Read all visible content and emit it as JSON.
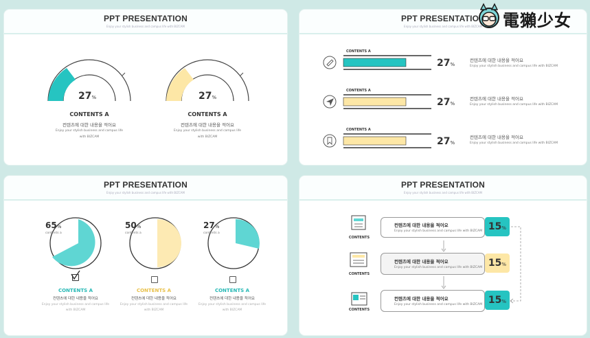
{
  "watermark": {
    "text": "電獺少女"
  },
  "colors": {
    "teal": "#26c4c1",
    "yellow": "#fde7a6",
    "light_teal": "#5fd6d3",
    "light_yellow": "#fdeab3"
  },
  "slides": [
    {
      "title": "PPT PRESENTATION",
      "subtitle": "Enjoy your stylish business and campus life with BIZCAM",
      "gauges": [
        {
          "value": "27",
          "unit": "%",
          "heading": "CONTENTS A",
          "korean": "컨텐츠에 대한 내용을 적어요",
          "english1": "Enjoy your stylish business and campus life",
          "english2": "with BIZCAM"
        },
        {
          "value": "27",
          "unit": "%",
          "heading": "CONTENTS A",
          "korean": "컨텐츠에 대한 내용을 적어요",
          "english1": "Enjoy your stylish business and campus life",
          "english2": "with BIZCAM"
        }
      ]
    },
    {
      "title": "PPT PRESENTATION",
      "subtitle": "Enjoy your stylish business and campus life with BIZCAM",
      "bars": [
        {
          "icon": "pen-icon",
          "label": "CONTENTS A",
          "value": "27",
          "unit": "%",
          "korean": "컨텐츠에 대한 내용을 적어요",
          "english": "Enjoy your stylish business and campus life with BIZCAM"
        },
        {
          "icon": "send-icon",
          "label": "CONTENTS A",
          "value": "27",
          "unit": "%",
          "korean": "컨텐츠에 대한 내용을 적어요",
          "english": "Enjoy your stylish business and campus life with BIZCAM"
        },
        {
          "icon": "bookmark-icon",
          "label": "CONTENTS A",
          "value": "27",
          "unit": "%",
          "korean": "컨텐츠에 대한 내용을 적어요",
          "english": "Enjoy your stylish business and campus life with BIZCAM"
        }
      ]
    },
    {
      "title": "PPT PRESENTATION",
      "subtitle": "Enjoy your stylish business and campus life with BIZCAM",
      "pies": [
        {
          "value": "65",
          "unit": "%",
          "small": "contents a",
          "heading": "CONTENTS A",
          "korean": "컨텐츠에 대한 내용을 적어요",
          "english1": "Enjoy your stylish business and campus life",
          "english2": "with BIZCAM",
          "checked": true
        },
        {
          "value": "50",
          "unit": "%",
          "small": "contents a",
          "heading": "CONTENTS A",
          "korean": "컨텐츠에 대한 내용을 적어요",
          "english1": "Enjoy your stylish business and campus life",
          "english2": "with BIZCAM",
          "checked": false
        },
        {
          "value": "27",
          "unit": "%",
          "small": "contents a",
          "heading": "CONTENTS A",
          "korean": "컨텐츠에 대한 내용을 적어요",
          "english1": "Enjoy your stylish business and campus life",
          "english2": "with BIZCAM",
          "checked": false
        }
      ]
    },
    {
      "title": "PPT PRESENTATION",
      "subtitle": "Enjoy your stylish business and campus life with BIZCAM",
      "rows": [
        {
          "icon": "calendar-icon",
          "label": "CONTENTS",
          "korean": "컨텐츠에 대한 내용을 적어요",
          "english": "Enjoy your stylish business and campus life with BIZCAM",
          "value": "15",
          "unit": "%"
        },
        {
          "icon": "news-icon",
          "label": "CONTENTS",
          "korean": "컨텐츠에 대한 내용을 적어요",
          "english": "Enjoy your stylish business and campus life with BIZCAM",
          "value": "15",
          "unit": "%"
        },
        {
          "icon": "board-icon",
          "label": "CONTENTS",
          "korean": "컨텐츠에 대한 내용을 적어요",
          "english": "Enjoy your stylish business and campus life with BIZCAM",
          "value": "15",
          "unit": "%"
        }
      ]
    }
  ]
}
